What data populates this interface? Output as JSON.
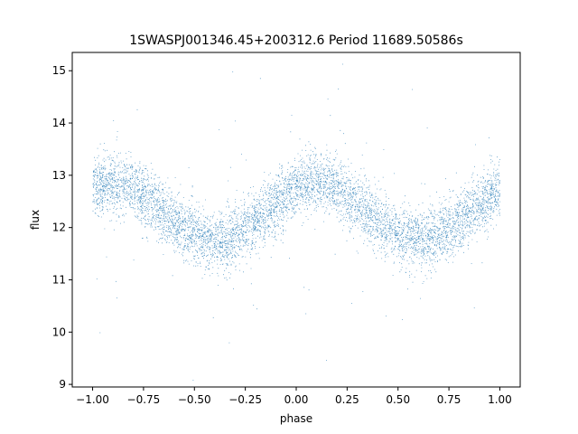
{
  "chart_data": {
    "type": "scatter",
    "title": "1SWASPJ001346.45+200312.6 Period 11689.50586s",
    "xlabel": "phase",
    "ylabel": "flux",
    "xlim": [
      -1.1,
      1.1
    ],
    "ylim": [
      8.95,
      15.35
    ],
    "x_ticks": [
      -1.0,
      -0.75,
      -0.5,
      -0.25,
      0.0,
      0.25,
      0.5,
      0.75,
      1.0
    ],
    "x_tick_labels": [
      "−1.00",
      "−0.75",
      "−0.50",
      "−0.25",
      "0.00",
      "0.25",
      "0.50",
      "0.75",
      "1.00"
    ],
    "y_ticks": [
      9,
      10,
      11,
      12,
      13,
      14,
      15
    ],
    "y_tick_labels": [
      "9",
      "10",
      "11",
      "12",
      "13",
      "14",
      "15"
    ],
    "grid": false,
    "legend": "none",
    "point_color": "#1f77b4",
    "series": [
      {
        "description_free": true,
        "model": {
          "mean_flux": 12.3,
          "amplitude": 0.55,
          "peak_phase": 0.1,
          "cycles_per_unit_phase": 1,
          "scatter": 0.28,
          "n_points": 9000,
          "outlier_fraction": 0.02,
          "phase_range": [
            -1.0,
            1.0
          ]
        }
      }
    ]
  }
}
